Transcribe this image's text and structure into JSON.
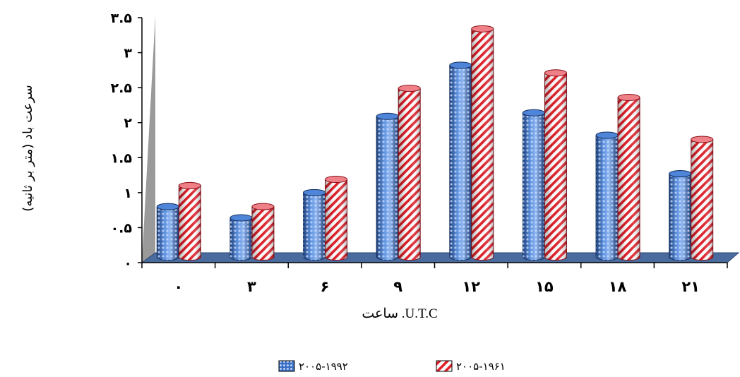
{
  "chart_data": {
    "type": "bar",
    "categories": [
      "۰",
      "۳",
      "۶",
      "۹",
      "۱۲",
      "۱۵",
      "۱۸",
      "۲۱"
    ],
    "yticks": [
      "۰",
      "۰.۵",
      "۱",
      "۱.۵",
      "۲",
      "۲.۵",
      "۳",
      "۳.۵"
    ],
    "ylim": [
      0,
      3.5
    ],
    "ylabel": "سرعت باد (متر بر ثانیه)",
    "xlabel": "ساعت .U.T.C",
    "series": [
      {
        "name": "۲۰۰۵-۱۹۹۲",
        "values": [
          0.76,
          0.6,
          0.96,
          2.05,
          2.78,
          2.1,
          1.78,
          1.23
        ],
        "color": "#3b6fc4",
        "pattern": "dots"
      },
      {
        "name": "۲۰۰۵-۱۹۶۱",
        "values": [
          1.06,
          0.76,
          1.15,
          2.45,
          3.3,
          2.67,
          2.32,
          1.72
        ],
        "color": "#e0202a",
        "pattern": "stripes"
      }
    ],
    "grid": false,
    "legend": "bottom"
  }
}
